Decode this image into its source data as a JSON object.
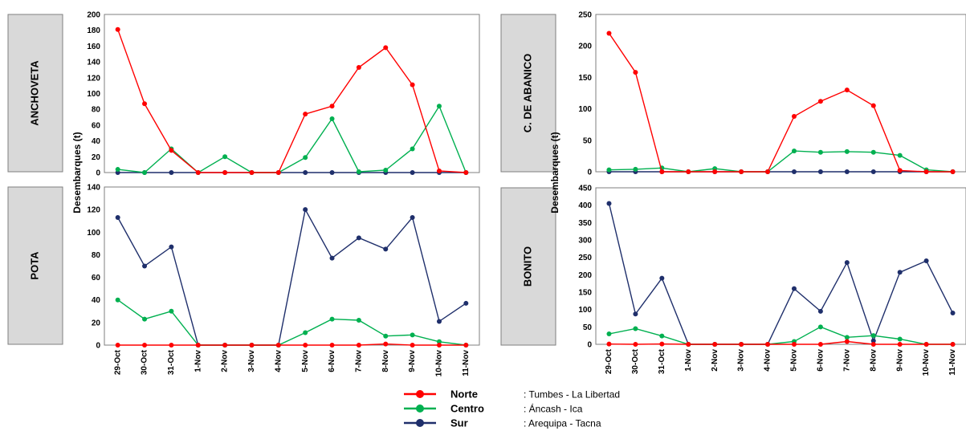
{
  "colors": {
    "Norte": "#ff0000",
    "Centro": "#00b050",
    "Sur": "#1f2f6b"
  },
  "ylabel": "Desembarques (t)",
  "legend": [
    {
      "name": "Norte",
      "desc": ": Tumbes - La Libertad"
    },
    {
      "name": "Centro",
      "desc": ": Áncash - Ica"
    },
    {
      "name": "Sur",
      "desc": ": Arequipa - Tacna"
    }
  ],
  "chart_data": [
    {
      "type": "line",
      "title": "ANCHOVETA",
      "ylabel": "Desembarques (t)",
      "x": [
        "29-Oct",
        "30-Oct",
        "31-Oct",
        "1-Nov",
        "2-Nov",
        "3-Nov",
        "4-Nov",
        "5-Nov",
        "6-Nov",
        "7-Nov",
        "8-Nov",
        "9-Nov",
        "10-Nov",
        "11-Nov"
      ],
      "ylim": [
        0,
        200
      ],
      "yticks": [
        0,
        20,
        40,
        60,
        80,
        100,
        120,
        140,
        160,
        180,
        200
      ],
      "series": [
        {
          "name": "Norte",
          "values": [
            181,
            87,
            28,
            0,
            0,
            0,
            0,
            74,
            84,
            133,
            158,
            111,
            2,
            0
          ]
        },
        {
          "name": "Centro",
          "values": [
            4,
            0,
            30,
            0,
            20,
            0,
            0,
            19,
            68,
            1,
            3,
            30,
            84,
            0
          ]
        },
        {
          "name": "Sur",
          "values": [
            0,
            0,
            0,
            0,
            0,
            0,
            0,
            0,
            0,
            0,
            0,
            0,
            0,
            0
          ]
        }
      ]
    },
    {
      "type": "line",
      "title": "POTA",
      "ylabel": "Desembarques (t)",
      "x": [
        "29-Oct",
        "30-Oct",
        "31-Oct",
        "1-Nov",
        "2-Nov",
        "3-Nov",
        "4-Nov",
        "5-Nov",
        "6-Nov",
        "7-Nov",
        "8-Nov",
        "9-Nov",
        "10-Nov",
        "11-Nov"
      ],
      "ylim": [
        0,
        140
      ],
      "yticks": [
        0,
        20,
        40,
        60,
        80,
        100,
        120,
        140
      ],
      "series": [
        {
          "name": "Norte",
          "values": [
            0,
            0,
            0,
            0,
            0,
            0,
            0,
            0,
            0,
            0,
            1,
            0,
            0,
            0
          ]
        },
        {
          "name": "Centro",
          "values": [
            40,
            23,
            30,
            0,
            0,
            0,
            0,
            11,
            23,
            22,
            8,
            9,
            3,
            0
          ]
        },
        {
          "name": "Sur",
          "values": [
            113,
            70,
            87,
            0,
            0,
            0,
            0,
            120,
            77,
            95,
            85,
            113,
            21,
            37
          ]
        }
      ]
    },
    {
      "type": "line",
      "title": "C. DE ABANICO",
      "ylabel": "Desembarques (t)",
      "x": [
        "29-Oct",
        "30-Oct",
        "31-Oct",
        "1-Nov",
        "2-Nov",
        "3-Nov",
        "4-Nov",
        "5-Nov",
        "6-Nov",
        "7-Nov",
        "8-Nov",
        "9-Nov",
        "10-Nov",
        "11-Nov"
      ],
      "ylim": [
        0,
        250
      ],
      "yticks": [
        0,
        50,
        100,
        150,
        200,
        250
      ],
      "series": [
        {
          "name": "Norte",
          "values": [
            220,
            158,
            0,
            0,
            0,
            0,
            0,
            88,
            112,
            130,
            105,
            2,
            0,
            0
          ]
        },
        {
          "name": "Centro",
          "values": [
            3,
            4,
            6,
            0,
            5,
            0,
            0,
            33,
            31,
            32,
            31,
            26,
            3,
            0
          ]
        },
        {
          "name": "Sur",
          "values": [
            0,
            0,
            0,
            0,
            0,
            0,
            0,
            0,
            0,
            0,
            0,
            0,
            0,
            0
          ]
        }
      ]
    },
    {
      "type": "line",
      "title": "BONITO",
      "ylabel": "Desembarques (t)",
      "x": [
        "29-Oct",
        "30-Oct",
        "31-Oct",
        "1-Nov",
        "2-Nov",
        "3-Nov",
        "4-Nov",
        "5-Nov",
        "6-Nov",
        "7-Nov",
        "8-Nov",
        "9-Nov",
        "10-Nov",
        "11-Nov"
      ],
      "ylim": [
        0,
        450
      ],
      "yticks": [
        0,
        50,
        100,
        150,
        200,
        250,
        300,
        350,
        400,
        450
      ],
      "series": [
        {
          "name": "Norte",
          "values": [
            1,
            0,
            1,
            0,
            0,
            0,
            0,
            0,
            0,
            8,
            0,
            0,
            0,
            0
          ]
        },
        {
          "name": "Centro",
          "values": [
            30,
            45,
            24,
            0,
            0,
            0,
            0,
            8,
            50,
            20,
            25,
            15,
            0,
            0
          ]
        },
        {
          "name": "Sur",
          "values": [
            405,
            87,
            190,
            0,
            0,
            0,
            0,
            160,
            95,
            235,
            10,
            207,
            240,
            90
          ]
        }
      ]
    }
  ]
}
